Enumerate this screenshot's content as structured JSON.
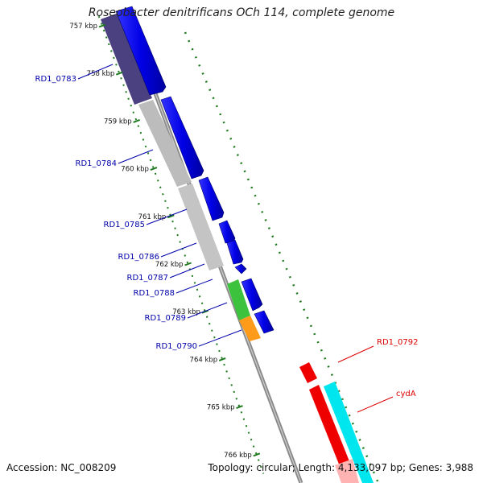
{
  "title": "Roseobacter denitrificans OCh 114, complete genome",
  "accession_text": "Accession: NC_008209",
  "summary_text": "Topology: circular; Length: 4,133,097 bp; Genes: 3,988",
  "colors": {
    "backbone": "#8a8a8a",
    "tick": "#1f7a1f",
    "forward_cds": "#0000e6",
    "forward_label": "#0000aa",
    "reverse_label": "#dd0000",
    "gc_dark": "#4b4180",
    "gc_gray": "#bcbcbc",
    "gc_green": "#3cc23c",
    "gc_orange": "#ff9b1a",
    "red_feature": "#ee0000",
    "cyan_feature": "#00e6ee",
    "pink_feature": "#ffb3b3"
  },
  "scale_ticks": [
    {
      "kbp": 757,
      "label": "757 kbp"
    },
    {
      "kbp": 758,
      "label": "758 kbp"
    },
    {
      "kbp": 759,
      "label": "759 kbp"
    },
    {
      "kbp": 760,
      "label": "760 kbp"
    },
    {
      "kbp": 761,
      "label": "761 kbp"
    },
    {
      "kbp": 762,
      "label": "762 kbp"
    },
    {
      "kbp": 763,
      "label": "763 kbp"
    },
    {
      "kbp": 764,
      "label": "764 kbp"
    },
    {
      "kbp": 765,
      "label": "765 kbp"
    },
    {
      "kbp": 766,
      "label": "766 kbp"
    }
  ],
  "gene_labels": [
    {
      "label": "RD1_0783",
      "strand": "forward"
    },
    {
      "label": "RD1_0784",
      "strand": "forward"
    },
    {
      "label": "RD1_0785",
      "strand": "forward"
    },
    {
      "label": "RD1_0786",
      "strand": "forward"
    },
    {
      "label": "RD1_0787",
      "strand": "forward"
    },
    {
      "label": "RD1_0788",
      "strand": "forward"
    },
    {
      "label": "RD1_0789",
      "strand": "forward"
    },
    {
      "label": "RD1_0790",
      "strand": "forward"
    },
    {
      "label": "RD1_0792",
      "strand": "reverse"
    },
    {
      "label": "cydA",
      "strand": "reverse"
    }
  ]
}
